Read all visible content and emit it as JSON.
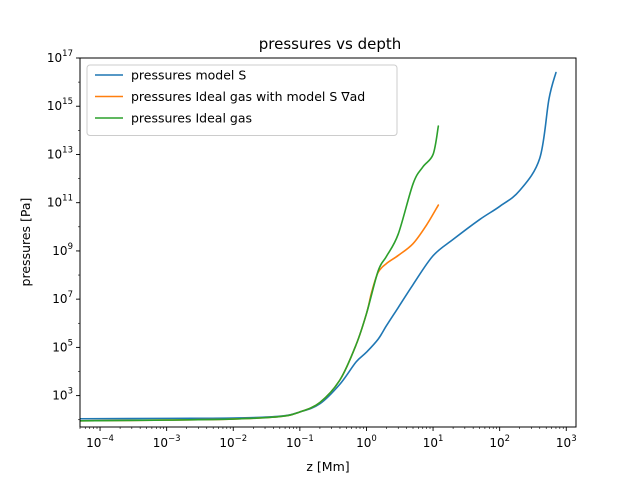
{
  "chart_data": {
    "type": "line",
    "title": "pressures vs depth",
    "xlabel": "z [Mm]",
    "ylabel": "pressures [Pa]",
    "xscale": "log",
    "yscale": "log",
    "xlim": [
      5e-05,
      1400
    ],
    "ylim": [
      50,
      1e+17
    ],
    "grid": false,
    "legend_position": "top-left",
    "x_ticks": [
      {
        "value": 0.0001,
        "base": "10",
        "exp": "−4"
      },
      {
        "value": 0.001,
        "base": "10",
        "exp": "−3"
      },
      {
        "value": 0.01,
        "base": "10",
        "exp": "−2"
      },
      {
        "value": 0.1,
        "base": "10",
        "exp": "−1"
      },
      {
        "value": 1,
        "base": "10",
        "exp": "0"
      },
      {
        "value": 10,
        "base": "10",
        "exp": "1"
      },
      {
        "value": 100,
        "base": "10",
        "exp": "2"
      },
      {
        "value": 1000,
        "base": "10",
        "exp": "3"
      }
    ],
    "y_ticks": [
      {
        "value": 1000,
        "base": "10",
        "exp": "3"
      },
      {
        "value": 100000,
        "base": "10",
        "exp": "5"
      },
      {
        "value": 10000000.0,
        "base": "10",
        "exp": "7"
      },
      {
        "value": 1000000000.0,
        "base": "10",
        "exp": "9"
      },
      {
        "value": 100000000000.0,
        "base": "10",
        "exp": "11"
      },
      {
        "value": 10000000000000.0,
        "base": "10",
        "exp": "13"
      },
      {
        "value": 1000000000000000.0,
        "base": "10",
        "exp": "15"
      },
      {
        "value": 1e+17,
        "base": "10",
        "exp": "17"
      }
    ],
    "series": [
      {
        "name": "pressures model S",
        "color": "#1f77b4",
        "x": [
          5e-05,
          0.001,
          0.01,
          0.05,
          0.1,
          0.2,
          0.4,
          0.7,
          1.0,
          1.5,
          2,
          3,
          5,
          10,
          20,
          50,
          100,
          200,
          400,
          550,
          700
        ],
        "y": [
          110,
          114,
          117,
          140,
          210,
          460,
          3000,
          25000,
          63000,
          220000,
          800000,
          4500000.0,
          40000000.0,
          630000000.0,
          3000000000.0,
          20000000000.0,
          70000000000.0,
          320000000000.0,
          7000000000000.0,
          2000000000000000.0,
          2.5e+16
        ]
      },
      {
        "name": "pressures Ideal gas with model S ∇ad",
        "color": "#ff7f0e",
        "x": [
          5e-05,
          0.001,
          0.01,
          0.05,
          0.1,
          0.2,
          0.4,
          0.7,
          1.0,
          1.2,
          1.5,
          2,
          3,
          5,
          8,
          12
        ],
        "y": [
          90,
          97,
          107,
          135,
          210,
          520,
          4500,
          130000,
          2500000.0,
          20000000.0,
          130000000.0,
          300000000.0,
          650000000.0,
          2000000000.0,
          12000000000.0,
          80000000000.0
        ]
      },
      {
        "name": "pressures Ideal gas",
        "color": "#2ca02c",
        "x": [
          5e-05,
          0.001,
          0.01,
          0.05,
          0.1,
          0.2,
          0.4,
          0.7,
          1.0,
          1.5,
          2,
          3,
          5,
          7,
          10,
          12
        ],
        "y": [
          90,
          97,
          107,
          135,
          210,
          520,
          4500,
          130000,
          2500000.0,
          150000000.0,
          600000000.0,
          5000000000.0,
          600000000000.0,
          3000000000000.0,
          10000000000000.0,
          150000000000000.0
        ]
      }
    ]
  }
}
